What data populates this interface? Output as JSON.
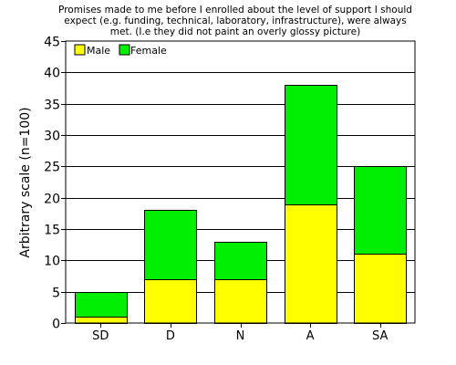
{
  "chart_data": {
    "type": "bar",
    "stacked": true,
    "title_lines": [
      "Promises made to me before I enrolled about the level of support I should",
      "expect (e.g. funding, technical, laboratory, infrastructure), were always",
      "met. (I.e they did not paint an overly glossy picture)"
    ],
    "ylabel": "Arbitrary scale (n=100)",
    "xlabel": "",
    "categories": [
      "SD",
      "D",
      "N",
      "A",
      "SA"
    ],
    "series": [
      {
        "name": "Male",
        "values": [
          1,
          7,
          7,
          19,
          11
        ]
      },
      {
        "name": "Female",
        "values": [
          4,
          11,
          6,
          19,
          14
        ]
      }
    ],
    "ylim": [
      0,
      45
    ],
    "yticks": [
      "0",
      "5",
      "10",
      "15",
      "20",
      "25",
      "30",
      "35",
      "40",
      "45"
    ],
    "grid": "horizontal",
    "legend_position": "top-left"
  },
  "colors": {
    "Male": "#ffff00",
    "Female": "#00ee00",
    "grid": "#000000",
    "bar_edge": "#000000"
  }
}
